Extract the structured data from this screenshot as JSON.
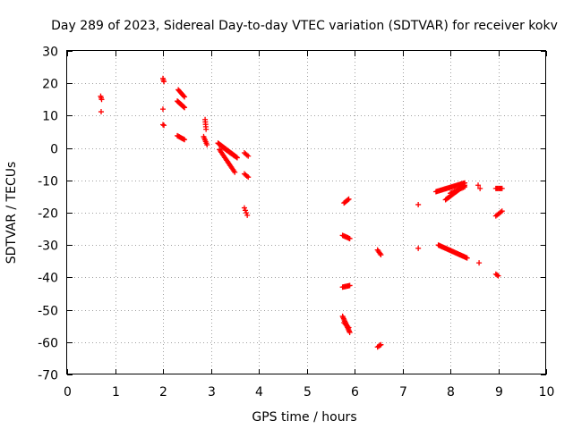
{
  "chart_data": {
    "type": "scatter",
    "title": "Day 289 of 2023, Sidereal Day-to-day VTEC variation (SDTVAR) for receiver kokv",
    "xlabel": "GPS time / hours",
    "ylabel": "SDTVAR / TECUs",
    "xlim": [
      0,
      10
    ],
    "ylim": [
      -70,
      30
    ],
    "xticks": [
      "0",
      "1",
      "2",
      "3",
      "4",
      "5",
      "6",
      "7",
      "8",
      "9",
      "10"
    ],
    "yticks": [
      "30",
      "20",
      "10",
      "0",
      "-10",
      "-20",
      "-30",
      "-40",
      "-50",
      "-60",
      "-70"
    ],
    "grid": true,
    "marker": "plus",
    "series": [
      {
        "name": "SDTVAR",
        "color": "#ff0000",
        "segments": [
          {
            "x0": 0.7,
            "y0": 16.0,
            "x1": 0.72,
            "y1": 15.0,
            "n": 3
          },
          {
            "x0": 0.71,
            "y0": 11.2,
            "x1": 0.71,
            "y1": 11.2,
            "n": 1
          },
          {
            "x0": 2.0,
            "y0": 21.5,
            "x1": 2.02,
            "y1": 20.5,
            "n": 3
          },
          {
            "x0": 2.0,
            "y0": 12.0,
            "x1": 2.0,
            "y1": 12.0,
            "n": 1
          },
          {
            "x0": 2.0,
            "y0": 7.2,
            "x1": 2.02,
            "y1": 7.0,
            "n": 2
          },
          {
            "x0": 2.32,
            "y0": 18.0,
            "x1": 2.45,
            "y1": 15.8,
            "n": 8
          },
          {
            "x0": 2.3,
            "y0": 14.5,
            "x1": 2.45,
            "y1": 12.5,
            "n": 12
          },
          {
            "x0": 2.3,
            "y0": 3.8,
            "x1": 2.45,
            "y1": 2.6,
            "n": 8
          },
          {
            "x0": 2.88,
            "y0": 8.8,
            "x1": 2.9,
            "y1": 5.8,
            "n": 5
          },
          {
            "x0": 2.85,
            "y0": 3.5,
            "x1": 2.92,
            "y1": 1.0,
            "n": 6
          },
          {
            "x0": 3.15,
            "y0": 1.5,
            "x1": 3.55,
            "y1": -3.0,
            "n": 26
          },
          {
            "x0": 3.18,
            "y0": -0.5,
            "x1": 3.5,
            "y1": -7.5,
            "n": 18
          },
          {
            "x0": 3.22,
            "y0": 0.5,
            "x1": 3.5,
            "y1": -2.5,
            "n": 12
          },
          {
            "x0": 3.7,
            "y0": -1.5,
            "x1": 3.78,
            "y1": -2.5,
            "n": 4
          },
          {
            "x0": 3.7,
            "y0": -8.0,
            "x1": 3.78,
            "y1": -9.0,
            "n": 4
          },
          {
            "x0": 3.7,
            "y0": -18.5,
            "x1": 3.76,
            "y1": -20.8,
            "n": 4
          },
          {
            "x0": 5.78,
            "y0": -17.0,
            "x1": 5.88,
            "y1": -15.8,
            "n": 6
          },
          {
            "x0": 5.75,
            "y0": -27.0,
            "x1": 5.9,
            "y1": -28.0,
            "n": 8
          },
          {
            "x0": 5.75,
            "y0": -43.0,
            "x1": 5.9,
            "y1": -42.5,
            "n": 8
          },
          {
            "x0": 5.75,
            "y0": -52.0,
            "x1": 5.9,
            "y1": -57.0,
            "n": 14
          },
          {
            "x0": 5.78,
            "y0": -54.0,
            "x1": 5.88,
            "y1": -55.5,
            "n": 5
          },
          {
            "x0": 6.48,
            "y0": -31.5,
            "x1": 6.55,
            "y1": -33.0,
            "n": 5
          },
          {
            "x0": 6.48,
            "y0": -61.5,
            "x1": 6.55,
            "y1": -60.8,
            "n": 4
          },
          {
            "x0": 7.33,
            "y0": -17.5,
            "x1": 7.33,
            "y1": -17.5,
            "n": 1
          },
          {
            "x0": 7.33,
            "y0": -31.0,
            "x1": 7.33,
            "y1": -31.0,
            "n": 1
          },
          {
            "x0": 7.7,
            "y0": -13.5,
            "x1": 8.3,
            "y1": -10.8,
            "n": 30
          },
          {
            "x0": 7.9,
            "y0": -16.0,
            "x1": 8.3,
            "y1": -11.5,
            "n": 20
          },
          {
            "x0": 8.0,
            "y0": -14.0,
            "x1": 8.3,
            "y1": -12.0,
            "n": 12
          },
          {
            "x0": 7.75,
            "y0": -30.0,
            "x1": 8.35,
            "y1": -34.0,
            "n": 32
          },
          {
            "x0": 8.58,
            "y0": -11.5,
            "x1": 8.62,
            "y1": -12.5,
            "n": 2
          },
          {
            "x0": 8.6,
            "y0": -35.5,
            "x1": 8.6,
            "y1": -35.5,
            "n": 1
          },
          {
            "x0": 8.95,
            "y0": -12.5,
            "x1": 9.08,
            "y1": -12.5,
            "n": 7
          },
          {
            "x0": 8.95,
            "y0": -21.0,
            "x1": 9.08,
            "y1": -19.5,
            "n": 6
          },
          {
            "x0": 8.95,
            "y0": -39.0,
            "x1": 9.0,
            "y1": -39.5,
            "n": 3
          }
        ]
      }
    ]
  }
}
